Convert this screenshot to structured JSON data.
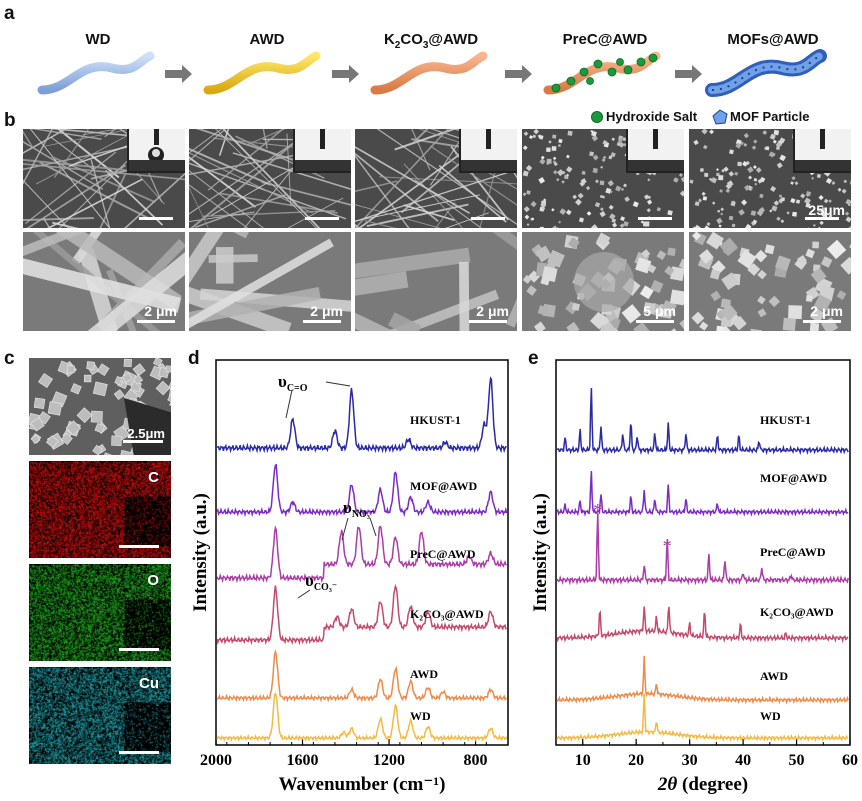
{
  "panel_labels": {
    "a": "a",
    "b": "b",
    "c": "c",
    "d": "d",
    "e": "e"
  },
  "stages": [
    "WD",
    "AWD",
    "K2CO3@AWD",
    "PreC@AWD",
    "MOFs@AWD"
  ],
  "legend": {
    "hydroxide": "Hydroxide Salt",
    "mof": "MOF Particle"
  },
  "colors": {
    "wd": "#f5b942",
    "awd": "#ee8a4a",
    "k2co3": "#c44a6c",
    "prec": "#ad3ca8",
    "mof": "#7b2bc4",
    "hkust": "#2a2aa6",
    "grey_arrow": "#777777"
  },
  "sem": {
    "scale_top_last": "25μm",
    "scale_bottom": [
      "2 μm",
      "2 μm",
      "2 μm",
      "5 μm",
      "2 μm"
    ]
  },
  "eds": {
    "sem_scale": "2.5μm",
    "elements": [
      "C",
      "O",
      "Cu"
    ]
  },
  "chart_data": [
    {
      "type": "line",
      "panel": "d",
      "xlabel": "Wavenumber (cm⁻¹)",
      "ylabel": "Intensity (a.u.)",
      "xlim": [
        2000,
        650
      ],
      "xticks": [
        "2000",
        "1600",
        "1200",
        "800"
      ],
      "series": [
        {
          "name": "HKUST-1",
          "color": "#2a2aa6",
          "peaks": [
            [
              1645,
              0.5
            ],
            [
              1450,
              0.3
            ],
            [
              1373,
              1.0
            ],
            [
              1110,
              0.15
            ],
            [
              940,
              0.1
            ],
            [
              760,
              0.4
            ],
            [
              730,
              1.2
            ]
          ]
        },
        {
          "name": "MOF@AWD",
          "color": "#7b2bc4",
          "peaks": [
            [
              1725,
              0.95
            ],
            [
              1645,
              0.2
            ],
            [
              1373,
              0.55
            ],
            [
              1240,
              0.45
            ],
            [
              1170,
              0.8
            ],
            [
              1100,
              0.3
            ],
            [
              1020,
              0.2
            ],
            [
              730,
              0.4
            ]
          ]
        },
        {
          "name": "PreC@AWD",
          "color": "#ad3ca8",
          "peaks": [
            [
              1725,
              0.9
            ],
            [
              1420,
              0.6
            ],
            [
              1340,
              0.7
            ],
            [
              1240,
              0.7
            ],
            [
              1170,
              0.5
            ],
            [
              1050,
              0.6
            ],
            [
              830,
              0.15
            ],
            [
              730,
              0.2
            ]
          ]
        },
        {
          "name": "K2CO3@AWD",
          "color": "#c44a6c",
          "peaks": [
            [
              1725,
              1.0
            ],
            [
              1440,
              0.2
            ],
            [
              1373,
              0.35
            ],
            [
              1240,
              0.5
            ],
            [
              1170,
              0.8
            ],
            [
              1100,
              0.4
            ],
            [
              1020,
              0.3
            ],
            [
              730,
              0.3
            ]
          ]
        },
        {
          "name": "AWD",
          "color": "#ee8a4a",
          "peaks": [
            [
              1725,
              1.1
            ],
            [
              1373,
              0.2
            ],
            [
              1240,
              0.45
            ],
            [
              1170,
              0.7
            ],
            [
              1100,
              0.4
            ],
            [
              1020,
              0.25
            ],
            [
              950,
              0.15
            ],
            [
              730,
              0.2
            ]
          ]
        },
        {
          "name": "WD",
          "color": "#f5b942",
          "peaks": [
            [
              1725,
              1.2
            ],
            [
              1410,
              0.15
            ],
            [
              1373,
              0.25
            ],
            [
              1240,
              0.5
            ],
            [
              1170,
              0.85
            ],
            [
              1100,
              0.45
            ],
            [
              1020,
              0.3
            ],
            [
              730,
              0.25
            ]
          ]
        }
      ],
      "annotations": {
        "co": "υ",
        "co_sub": "C=O",
        "no3": "υ",
        "no3_sub": "NO₃⁻",
        "co3": "υ",
        "co3_sub": "CO₃⁻"
      }
    },
    {
      "type": "line",
      "panel": "e",
      "xlabel": "(degree)",
      "xlabel_italic": "2θ",
      "ylabel": "Intensity (a.u.)",
      "xlim": [
        5,
        60
      ],
      "xticks": [
        "10",
        "20",
        "30",
        "40",
        "50",
        "60"
      ],
      "series": [
        {
          "name": "HKUST-1",
          "color": "#2a2aa6",
          "peaks": [
            [
              6.7,
              0.25
            ],
            [
              9.5,
              0.4
            ],
            [
              11.6,
              1.3
            ],
            [
              13.4,
              0.5
            ],
            [
              17.5,
              0.35
            ],
            [
              19,
              0.6
            ],
            [
              20.2,
              0.3
            ],
            [
              23.5,
              0.35
            ],
            [
              26,
              0.55
            ],
            [
              29.3,
              0.35
            ],
            [
              35.2,
              0.3
            ],
            [
              39.2,
              0.3
            ],
            [
              43,
              0.2
            ]
          ]
        },
        {
          "name": "MOF@AWD",
          "color": "#7b2bc4",
          "peaks": [
            [
              6.7,
              0.15
            ],
            [
              9.5,
              0.25
            ],
            [
              11.6,
              0.9
            ],
            [
              13.4,
              0.4
            ],
            [
              19,
              0.35
            ],
            [
              21.5,
              0.5
            ],
            [
              23.5,
              0.3
            ],
            [
              26,
              0.6
            ],
            [
              29.3,
              0.3
            ],
            [
              35.2,
              0.2
            ]
          ]
        },
        {
          "name": "PreC@AWD",
          "color": "#ad3ca8",
          "peaks": [
            [
              12.8,
              1.3
            ],
            [
              21.5,
              0.3
            ],
            [
              25.8,
              0.8
            ],
            [
              33.6,
              0.5
            ],
            [
              36.6,
              0.4
            ],
            [
              40,
              0.15
            ],
            [
              43.5,
              0.25
            ],
            [
              49,
              0.1
            ]
          ]
        },
        {
          "name": "K2CO3@AWD",
          "color": "#c44a6c",
          "peaks": [
            [
              13.2,
              0.55
            ],
            [
              21.5,
              0.5
            ],
            [
              23.8,
              0.3
            ],
            [
              26.1,
              0.6
            ],
            [
              30,
              0.25
            ],
            [
              32.8,
              0.55
            ],
            [
              39.5,
              0.3
            ],
            [
              48,
              0.1
            ]
          ]
        },
        {
          "name": "AWD",
          "color": "#ee8a4a",
          "peaks": [
            [
              21.5,
              0.85
            ],
            [
              23.8,
              0.25
            ]
          ]
        },
        {
          "name": "WD",
          "color": "#f5b942",
          "peaks": [
            [
              21.5,
              0.95
            ],
            [
              23.8,
              0.3
            ]
          ]
        }
      ],
      "markers": {
        "star": "*"
      }
    }
  ]
}
